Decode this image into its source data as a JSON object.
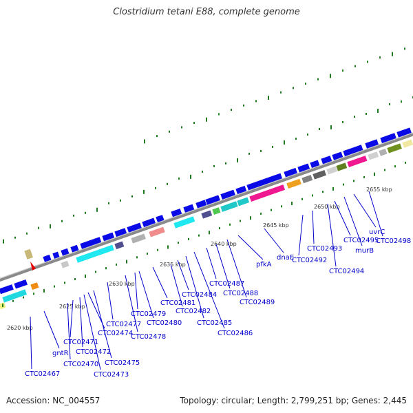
{
  "title": "Clostridium tetani E88, complete genome",
  "footer": {
    "accession": "Accession: NC_004557",
    "summary": "Topology: circular; Length: 2,799,251 bp; Genes: 2,445"
  },
  "colors": {
    "backbone": "#8a8a8a",
    "gene": "#0a0ae6",
    "label": "#0000cc",
    "tick": "#1f7a1f",
    "marker": "#e60000"
  },
  "kbp_labels": [
    "2620 kbp",
    "2625 kbp",
    "2630 kbp",
    "2635 kbp",
    "2640 kbp",
    "2645 kbp",
    "2650 kbp",
    "2655 kbp"
  ],
  "gene_labels": [
    "CTC02467",
    "gntR",
    "CTC02470",
    "CTC02471",
    "CTC02472",
    "CTC02473",
    "CTC02474",
    "CTC02475",
    "CTC02477",
    "CTC02478",
    "CTC02479",
    "CTC02480",
    "CTC02481",
    "CTC02482",
    "CTC02484",
    "CTC02485",
    "CTC02486",
    "CTC02487",
    "CTC02488",
    "CTC02489",
    "pfkA",
    "dnaE",
    "CTC02492",
    "CTC02493",
    "CTC02494",
    "CTC02495",
    "murB",
    "uvrC",
    "CTC02498"
  ]
}
